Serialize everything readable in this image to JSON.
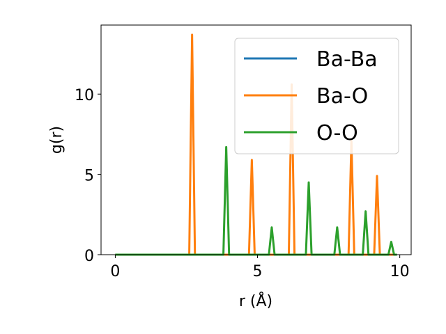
{
  "chart_data": {
    "type": "line",
    "title": "",
    "xlabel": "r (Å)",
    "ylabel": "g(r)",
    "xlim": [
      -0.5,
      10.4
    ],
    "ylim": [
      0,
      14.3
    ],
    "xticks": [
      0,
      5,
      10
    ],
    "yticks": [
      0,
      5,
      10
    ],
    "xtick_labels": [
      "0",
      "5",
      "10"
    ],
    "ytick_labels": [
      "0",
      "5",
      "10"
    ],
    "grid": false,
    "legend_position": "top-right",
    "series": [
      {
        "name": "Ba-Ba",
        "color": "#1f77b4",
        "x": [
          0,
          9.9
        ],
        "y": [
          0,
          0
        ]
      },
      {
        "name": "Ba-O",
        "color": "#ff7f0e",
        "x": [
          0,
          2.6,
          2.7,
          2.8,
          4.6,
          4.7,
          4.8,
          4.9,
          6.0,
          6.1,
          6.2,
          6.3,
          8.2,
          8.3,
          8.4,
          9.1,
          9.2,
          9.3,
          9.9
        ],
        "y": [
          0,
          0,
          13.7,
          0,
          0,
          0,
          5.9,
          0,
          0,
          0,
          10.6,
          0,
          0,
          7.1,
          0,
          0,
          4.9,
          0,
          0
        ]
      },
      {
        "name": "O-O",
        "color": "#2ca02c",
        "x": [
          0,
          3.8,
          3.9,
          4.0,
          5.4,
          5.5,
          5.6,
          6.7,
          6.8,
          6.9,
          7.7,
          7.8,
          7.9,
          8.7,
          8.8,
          8.9,
          9.6,
          9.7,
          9.8,
          9.9
        ],
        "y": [
          0,
          0,
          6.7,
          0,
          0,
          1.7,
          0,
          0,
          4.5,
          0,
          0,
          1.7,
          0,
          0,
          2.7,
          0,
          0,
          0.8,
          0,
          0
        ]
      }
    ]
  }
}
